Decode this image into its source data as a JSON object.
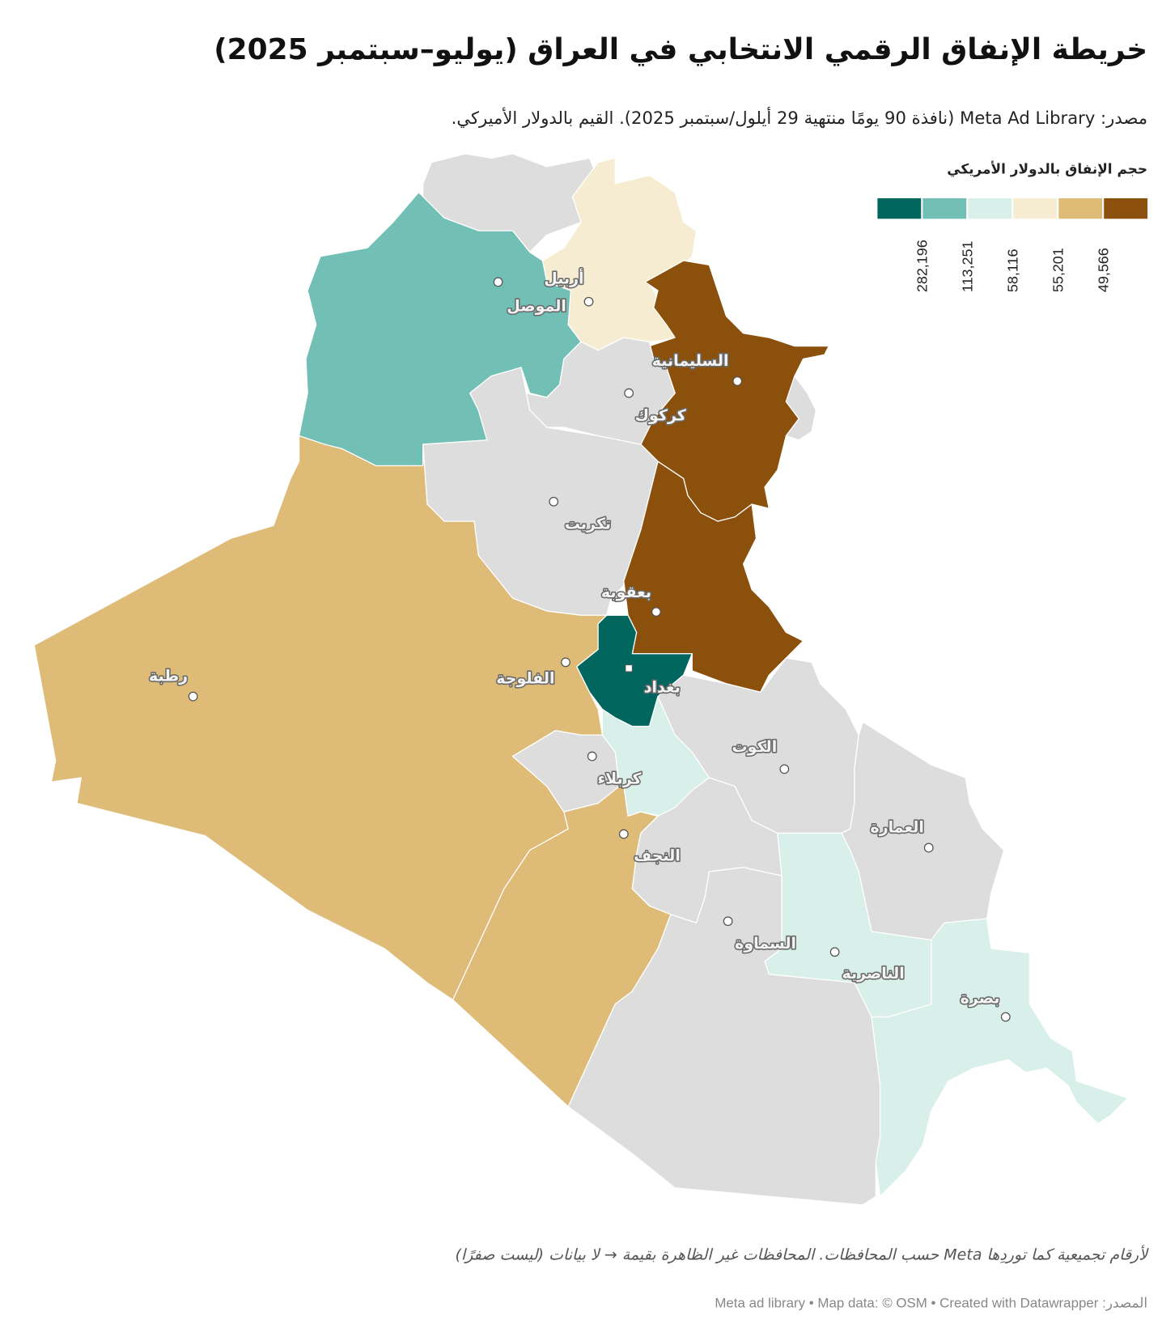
{
  "title": "خريطة الإنفاق الرقمي الانتخابي في العراق (يوليو–سبتمبر 2025)",
  "subtitle": "مصدر: Meta Ad Library (نافذة 90 يومًا منتهية 29 أيلول/سبتمبر 2025). القيم بالدولار الأميركي.",
  "legend": {
    "title": "حجم الإنفاق بالدولار الأمريكي",
    "colors": [
      "#00665e",
      "#72bfb6",
      "#d9efe9",
      "#f5ecd1",
      "#dfbb78",
      "#8b510c"
    ],
    "labels": [
      "282,196",
      "113,251",
      "58,116",
      "55,201",
      "49,566"
    ]
  },
  "no_data_color": "#dddddd",
  "cities": [
    {
      "name": "أربيل"
    },
    {
      "name": "الموصل"
    },
    {
      "name": "السليمانية"
    },
    {
      "name": "كركوك"
    },
    {
      "name": "تكريت"
    },
    {
      "name": "بعقوبة"
    },
    {
      "name": "بغداد"
    },
    {
      "name": "الفلوجة"
    },
    {
      "name": "رطبة"
    },
    {
      "name": "كربلاء"
    },
    {
      "name": "النجف"
    },
    {
      "name": "الكوت"
    },
    {
      "name": "العمارة"
    },
    {
      "name": "السماوة"
    },
    {
      "name": "الناصرية"
    },
    {
      "name": "بصرة"
    }
  ],
  "notes": "لأرقام تجميعية كما توردِها Meta حسب المحافظات. المحافظات غير الظاهرة بقيمة → لا بيانات (ليست صفرًا)",
  "source": "المصدر: Meta ad library • Map data: © OSM  • Created with Datawrapper"
}
